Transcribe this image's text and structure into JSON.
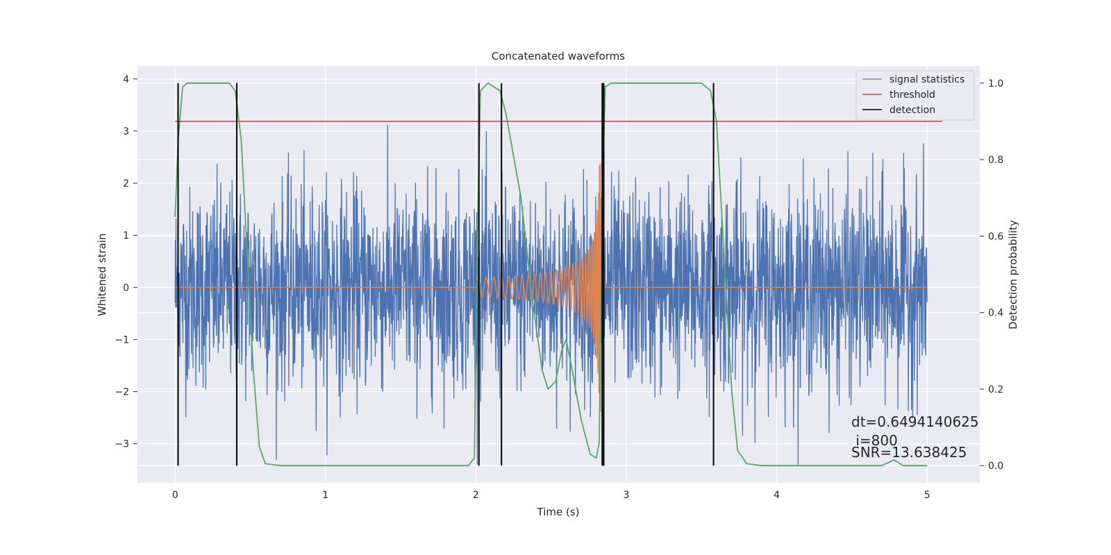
{
  "chart_data": {
    "type": "line",
    "title": "Concatenated waveforms",
    "xlabel": "Time (s)",
    "ylabel": "Whitened strain",
    "y2label": "Detection probability",
    "xlim": [
      -0.25,
      5.35
    ],
    "ylim": [
      -3.75,
      4.25
    ],
    "y2lim": [
      -0.045,
      1.045
    ],
    "x_ticks": [
      0,
      1,
      2,
      3,
      4,
      5
    ],
    "y_ticks": [
      -3,
      -2,
      -1,
      0,
      1,
      2,
      3,
      4
    ],
    "y2_ticks": [
      0.0,
      0.2,
      0.4,
      0.6,
      0.8,
      1.0
    ],
    "x_tick_labels": [
      "0",
      "1",
      "2",
      "3",
      "4",
      "5"
    ],
    "y_tick_labels": [
      "−3",
      "−2",
      "−1",
      "0",
      "1",
      "2",
      "3",
      "4"
    ],
    "y2_tick_labels": [
      "0.0",
      "0.2",
      "0.4",
      "0.6",
      "0.8",
      "1.0"
    ],
    "grid": true,
    "legend": {
      "placement": "top-right",
      "entries": [
        {
          "label": "signal statistics",
          "color": "#55a868"
        },
        {
          "label": "threshold",
          "color": "#c44e52"
        },
        {
          "label": "detection",
          "color": "#000000"
        }
      ]
    },
    "series": [
      {
        "name": "",
        "kind": "whitened-strain-noise",
        "color": "#4c72b0",
        "x_range": [
          0,
          5
        ],
        "amplitude_range": [
          -3.4,
          3.9
        ]
      },
      {
        "name": "",
        "kind": "injected-chirp",
        "color": "#dd8452",
        "x_range": [
          2.0,
          2.83
        ],
        "peak_amplitude": 2.4
      },
      {
        "name": "signal statistics",
        "axis": "y2",
        "color": "#55a868",
        "points": [
          [
            0.0,
            0.65
          ],
          [
            0.02,
            0.85
          ],
          [
            0.05,
            0.99
          ],
          [
            0.08,
            1.0
          ],
          [
            0.36,
            1.0
          ],
          [
            0.4,
            0.98
          ],
          [
            0.44,
            0.85
          ],
          [
            0.48,
            0.55
          ],
          [
            0.52,
            0.25
          ],
          [
            0.56,
            0.05
          ],
          [
            0.6,
            0.005
          ],
          [
            0.7,
            0.0
          ],
          [
            1.95,
            0.0
          ],
          [
            1.99,
            0.02
          ],
          [
            2.01,
            0.6
          ],
          [
            2.03,
            0.98
          ],
          [
            2.08,
            1.0
          ],
          [
            2.16,
            0.98
          ],
          [
            2.2,
            0.92
          ],
          [
            2.3,
            0.7
          ],
          [
            2.38,
            0.42
          ],
          [
            2.44,
            0.25
          ],
          [
            2.48,
            0.2
          ],
          [
            2.53,
            0.22
          ],
          [
            2.57,
            0.3
          ],
          [
            2.6,
            0.33
          ],
          [
            2.64,
            0.25
          ],
          [
            2.7,
            0.12
          ],
          [
            2.76,
            0.03
          ],
          [
            2.8,
            0.02
          ],
          [
            2.82,
            0.06
          ],
          [
            2.84,
            0.7
          ],
          [
            2.86,
            0.99
          ],
          [
            2.9,
            1.0
          ],
          [
            3.5,
            1.0
          ],
          [
            3.56,
            0.98
          ],
          [
            3.6,
            0.9
          ],
          [
            3.65,
            0.55
          ],
          [
            3.7,
            0.2
          ],
          [
            3.74,
            0.04
          ],
          [
            3.8,
            0.005
          ],
          [
            3.9,
            0.0
          ],
          [
            4.7,
            0.0
          ],
          [
            4.78,
            0.015
          ],
          [
            4.84,
            0.0
          ],
          [
            5.0,
            0.0
          ]
        ]
      },
      {
        "name": "threshold",
        "axis": "y2",
        "color": "#c44e52",
        "x": [
          0,
          5.1
        ],
        "value": 0.9
      },
      {
        "name": "detection",
        "axis": "y2",
        "color": "#000000",
        "x": [
          0.02,
          0.41,
          2.02,
          2.17,
          2.84,
          2.85,
          3.58
        ],
        "ymin": 0.0,
        "ymax": 1.0
      }
    ],
    "annotations": [
      "dt=0.6494140625",
      " i=800",
      "SNR=13.638425"
    ]
  },
  "colors": {
    "background": "#eaeaf2",
    "grid": "#ffffff",
    "noise": "#4c72b0",
    "chirp": "#dd8452",
    "statistic": "#55a868",
    "threshold": "#c44e52",
    "detection": "#000000"
  }
}
